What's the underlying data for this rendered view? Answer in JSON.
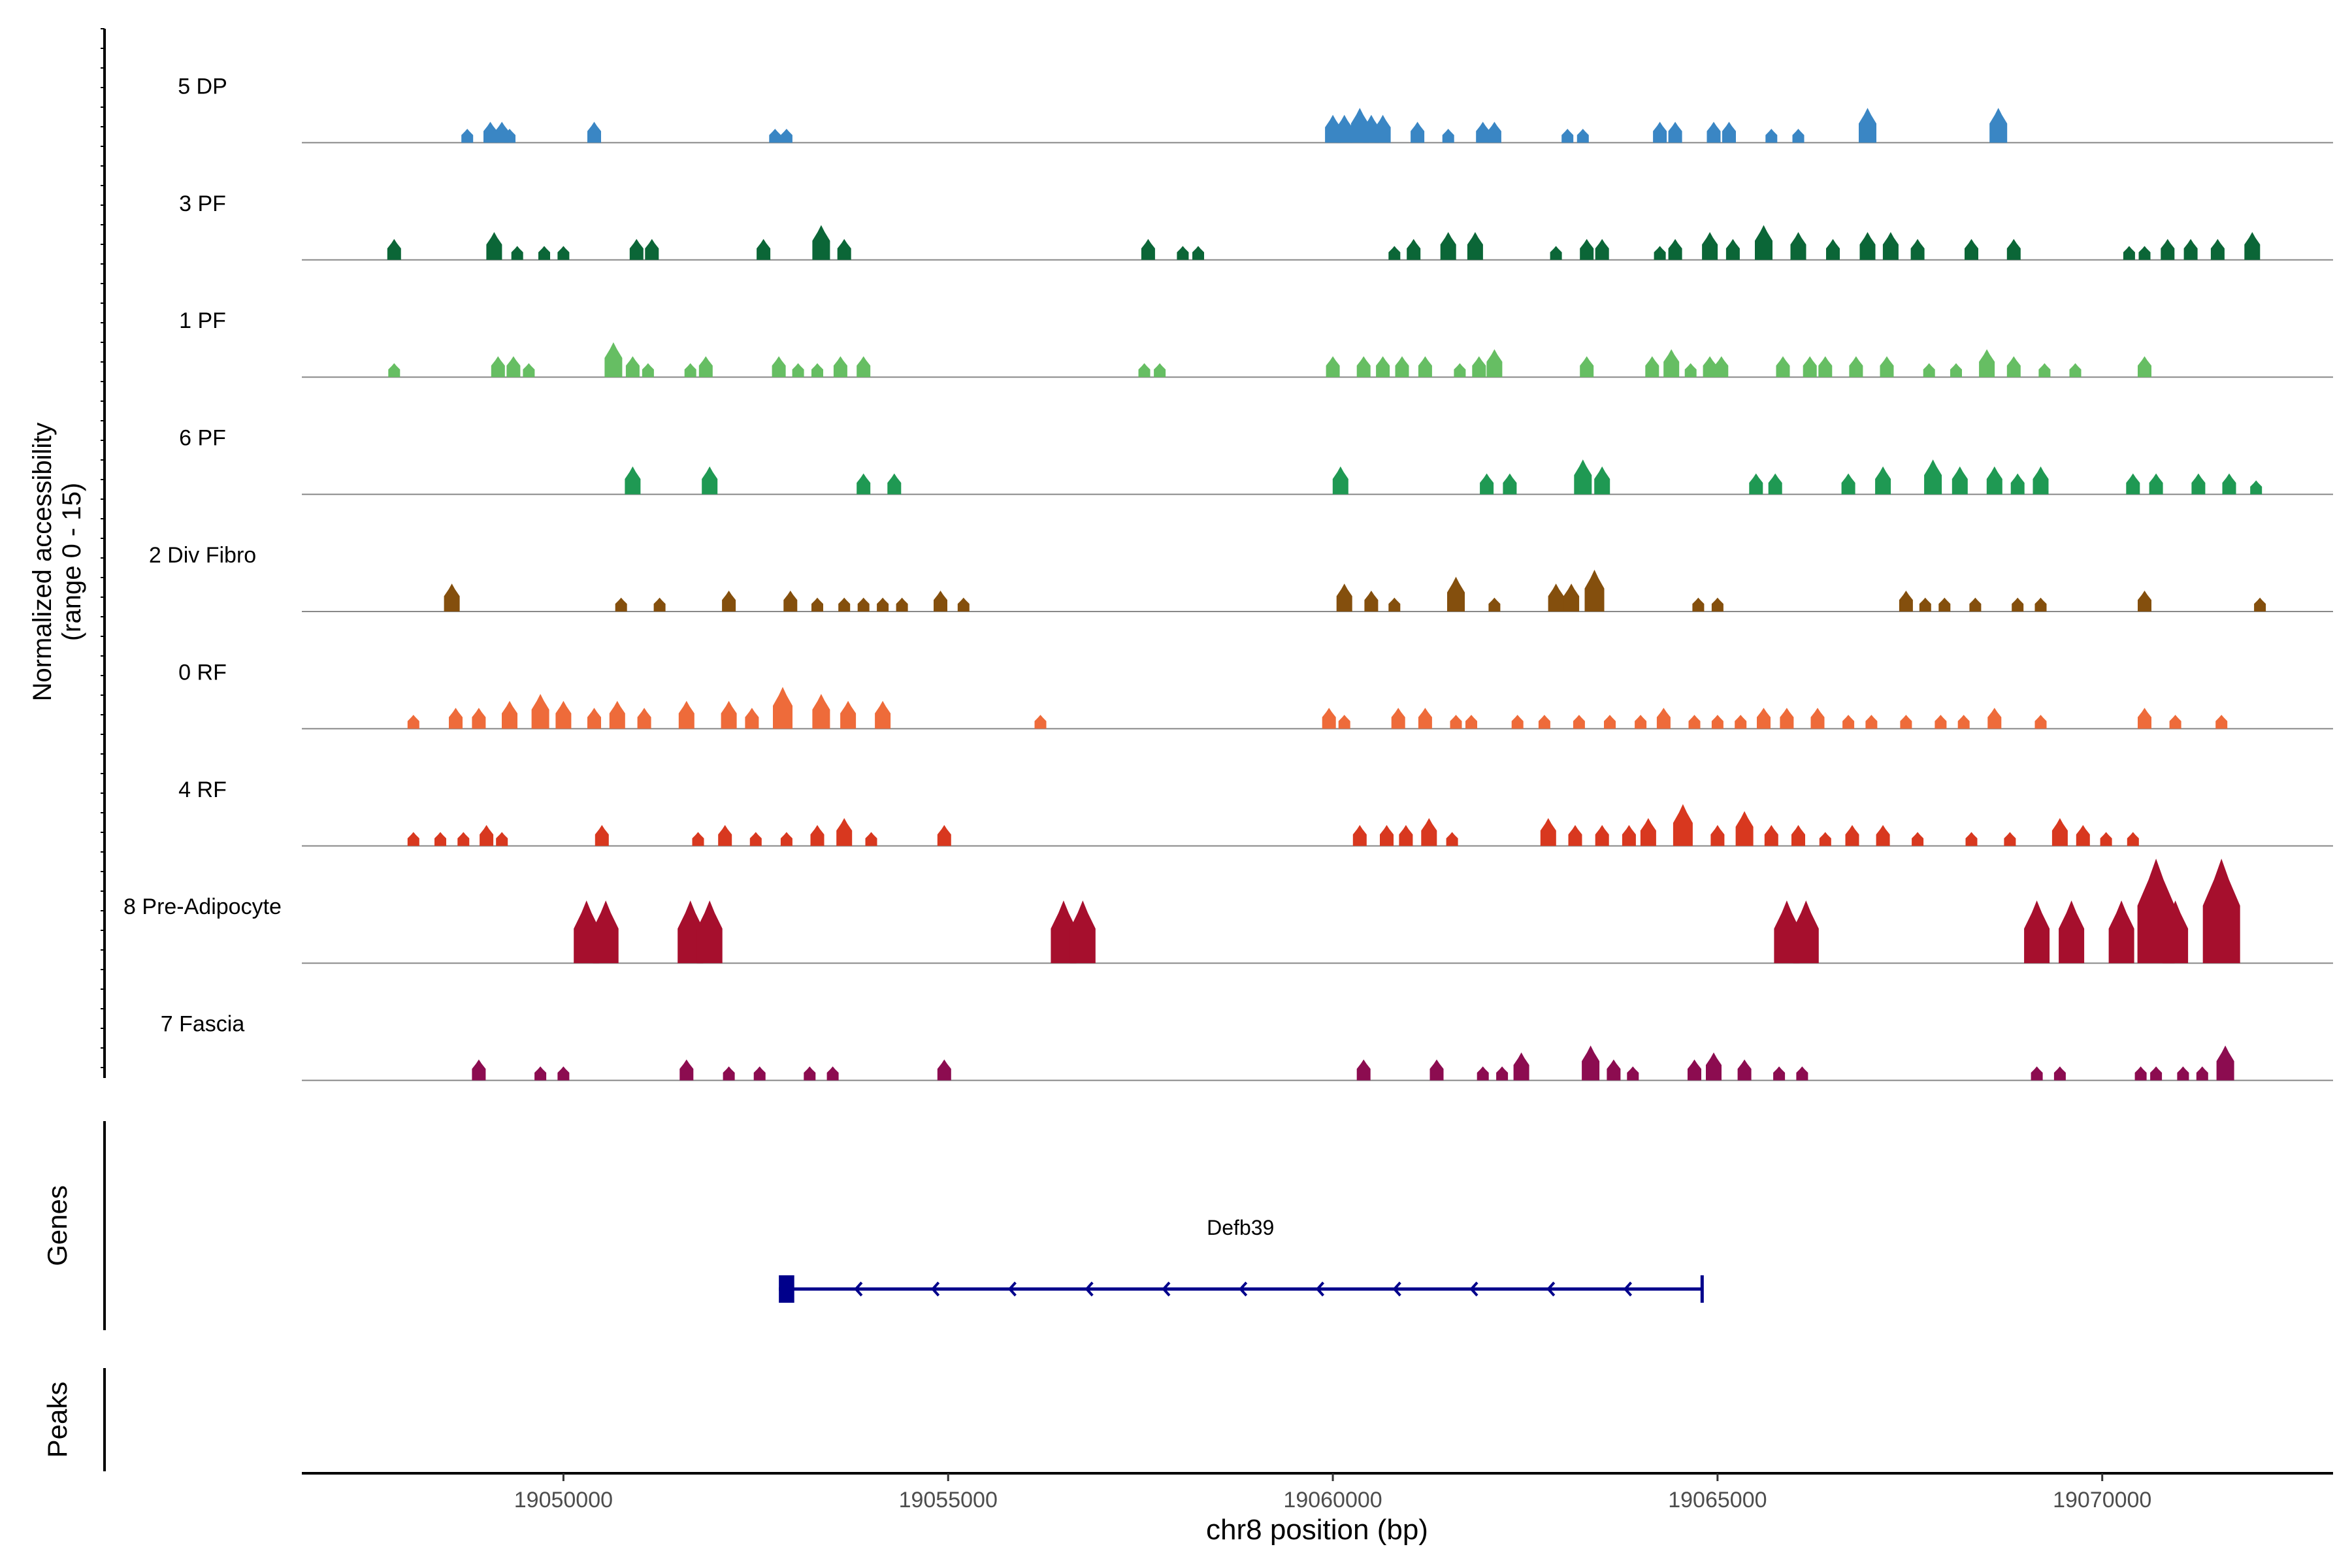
{
  "chart_data": {
    "type": "area",
    "title": "",
    "ylabel_line1": "Normalized accessibility",
    "ylabel_line2": "(range 0 - 15)",
    "ylim": [
      0,
      15
    ],
    "xlabel": "chr8 position (bp)",
    "chromosome": "chr8",
    "xlim": [
      19046600,
      19073000
    ],
    "x_ticks": [
      19050000,
      19055000,
      19060000,
      19065000,
      19070000
    ],
    "x_tick_labels": [
      "19050000",
      "19055000",
      "19060000",
      "19065000",
      "19070000"
    ],
    "tracks": [
      {
        "name": "5 DP",
        "color": "#3a86c4",
        "peaks": [
          [
            19048750,
            2
          ],
          [
            19049050,
            3
          ],
          [
            19049200,
            3
          ],
          [
            19049300,
            2
          ],
          [
            19050400,
            3
          ],
          [
            19052750,
            2
          ],
          [
            19052900,
            2
          ],
          [
            19060000,
            4
          ],
          [
            19060150,
            4
          ],
          [
            19060350,
            5
          ],
          [
            19060500,
            4
          ],
          [
            19060650,
            4
          ],
          [
            19061100,
            3
          ],
          [
            19061500,
            2
          ],
          [
            19061950,
            3
          ],
          [
            19062100,
            3
          ],
          [
            19063050,
            2
          ],
          [
            19063250,
            2
          ],
          [
            19064250,
            3
          ],
          [
            19064450,
            3
          ],
          [
            19064950,
            3
          ],
          [
            19065150,
            3
          ],
          [
            19065700,
            2
          ],
          [
            19066050,
            2
          ],
          [
            19066950,
            5
          ],
          [
            19068650,
            5
          ]
        ]
      },
      {
        "name": "3 PF",
        "color": "#0b6637",
        "peaks": [
          [
            19047800,
            3
          ],
          [
            19049100,
            4
          ],
          [
            19049400,
            2
          ],
          [
            19049750,
            2
          ],
          [
            19050000,
            2
          ],
          [
            19050950,
            3
          ],
          [
            19051150,
            3
          ],
          [
            19052600,
            3
          ],
          [
            19053350,
            5
          ],
          [
            19053650,
            3
          ],
          [
            19057600,
            3
          ],
          [
            19058050,
            2
          ],
          [
            19058250,
            2
          ],
          [
            19060800,
            2
          ],
          [
            19061050,
            3
          ],
          [
            19061500,
            4
          ],
          [
            19061850,
            4
          ],
          [
            19062900,
            2
          ],
          [
            19063300,
            3
          ],
          [
            19063500,
            3
          ],
          [
            19064250,
            2
          ],
          [
            19064450,
            3
          ],
          [
            19064900,
            4
          ],
          [
            19065200,
            3
          ],
          [
            19065600,
            5
          ],
          [
            19066050,
            4
          ],
          [
            19066500,
            3
          ],
          [
            19066950,
            4
          ],
          [
            19067250,
            4
          ],
          [
            19067600,
            3
          ],
          [
            19068300,
            3
          ],
          [
            19068850,
            3
          ],
          [
            19070350,
            2
          ],
          [
            19070550,
            2
          ],
          [
            19070850,
            3
          ],
          [
            19071150,
            3
          ],
          [
            19071500,
            3
          ],
          [
            19071950,
            4
          ]
        ]
      },
      {
        "name": "1 PF",
        "color": "#66be63",
        "peaks": [
          [
            19047800,
            2
          ],
          [
            19049150,
            3
          ],
          [
            19049350,
            3
          ],
          [
            19049550,
            2
          ],
          [
            19050650,
            5
          ],
          [
            19050900,
            3
          ],
          [
            19051100,
            2
          ],
          [
            19051650,
            2
          ],
          [
            19051850,
            3
          ],
          [
            19052800,
            3
          ],
          [
            19053050,
            2
          ],
          [
            19053300,
            2
          ],
          [
            19053600,
            3
          ],
          [
            19053900,
            3
          ],
          [
            19057550,
            2
          ],
          [
            19057750,
            2
          ],
          [
            19060000,
            3
          ],
          [
            19060400,
            3
          ],
          [
            19060650,
            3
          ],
          [
            19060900,
            3
          ],
          [
            19061200,
            3
          ],
          [
            19061650,
            2
          ],
          [
            19061900,
            3
          ],
          [
            19062100,
            4
          ],
          [
            19063300,
            3
          ],
          [
            19064150,
            3
          ],
          [
            19064400,
            4
          ],
          [
            19064650,
            2
          ],
          [
            19064900,
            3
          ],
          [
            19065050,
            3
          ],
          [
            19065850,
            3
          ],
          [
            19066200,
            3
          ],
          [
            19066400,
            3
          ],
          [
            19066800,
            3
          ],
          [
            19067200,
            3
          ],
          [
            19067750,
            2
          ],
          [
            19068100,
            2
          ],
          [
            19068500,
            4
          ],
          [
            19068850,
            3
          ],
          [
            19069250,
            2
          ],
          [
            19069650,
            2
          ],
          [
            19070550,
            3
          ]
        ]
      },
      {
        "name": "6 PF",
        "color": "#1f9953",
        "peaks": [
          [
            19050900,
            4
          ],
          [
            19051900,
            4
          ],
          [
            19053900,
            3
          ],
          [
            19054300,
            3
          ],
          [
            19060100,
            4
          ],
          [
            19062000,
            3
          ],
          [
            19062300,
            3
          ],
          [
            19063250,
            5
          ],
          [
            19063500,
            4
          ],
          [
            19065500,
            3
          ],
          [
            19065750,
            3
          ],
          [
            19066700,
            3
          ],
          [
            19067150,
            4
          ],
          [
            19067800,
            5
          ],
          [
            19068150,
            4
          ],
          [
            19068600,
            4
          ],
          [
            19068900,
            3
          ],
          [
            19069200,
            4
          ],
          [
            19070400,
            3
          ],
          [
            19070700,
            3
          ],
          [
            19071250,
            3
          ],
          [
            19071650,
            3
          ],
          [
            19072000,
            2
          ]
        ]
      },
      {
        "name": "2 Div Fibro",
        "color": "#844f0d",
        "peaks": [
          [
            19048550,
            4
          ],
          [
            19050750,
            2
          ],
          [
            19051250,
            2
          ],
          [
            19052150,
            3
          ],
          [
            19052950,
            3
          ],
          [
            19053300,
            2
          ],
          [
            19053650,
            2
          ],
          [
            19053900,
            2
          ],
          [
            19054150,
            2
          ],
          [
            19054400,
            2
          ],
          [
            19054900,
            3
          ],
          [
            19055200,
            2
          ],
          [
            19060150,
            4
          ],
          [
            19060500,
            3
          ],
          [
            19060800,
            2
          ],
          [
            19061600,
            5
          ],
          [
            19062100,
            2
          ],
          [
            19062900,
            4
          ],
          [
            19063100,
            4
          ],
          [
            19063400,
            6
          ],
          [
            19064750,
            2
          ],
          [
            19065000,
            2
          ],
          [
            19067450,
            3
          ],
          [
            19067700,
            2
          ],
          [
            19067950,
            2
          ],
          [
            19068350,
            2
          ],
          [
            19068900,
            2
          ],
          [
            19069200,
            2
          ],
          [
            19070550,
            3
          ],
          [
            19072050,
            2
          ]
        ]
      },
      {
        "name": "0 RF",
        "color": "#ee6b3a",
        "peaks": [
          [
            19048050,
            2
          ],
          [
            19048600,
            3
          ],
          [
            19048900,
            3
          ],
          [
            19049300,
            4
          ],
          [
            19049700,
            5
          ],
          [
            19050000,
            4
          ],
          [
            19050400,
            3
          ],
          [
            19050700,
            4
          ],
          [
            19051050,
            3
          ],
          [
            19051600,
            4
          ],
          [
            19052150,
            4
          ],
          [
            19052450,
            3
          ],
          [
            19052850,
            6
          ],
          [
            19053350,
            5
          ],
          [
            19053700,
            4
          ],
          [
            19054150,
            4
          ],
          [
            19056200,
            2
          ],
          [
            19059950,
            3
          ],
          [
            19060150,
            2
          ],
          [
            19060850,
            3
          ],
          [
            19061200,
            3
          ],
          [
            19061600,
            2
          ],
          [
            19061800,
            2
          ],
          [
            19062400,
            2
          ],
          [
            19062750,
            2
          ],
          [
            19063200,
            2
          ],
          [
            19063600,
            2
          ],
          [
            19064000,
            2
          ],
          [
            19064300,
            3
          ],
          [
            19064700,
            2
          ],
          [
            19065000,
            2
          ],
          [
            19065300,
            2
          ],
          [
            19065600,
            3
          ],
          [
            19065900,
            3
          ],
          [
            19066300,
            3
          ],
          [
            19066700,
            2
          ],
          [
            19067000,
            2
          ],
          [
            19067450,
            2
          ],
          [
            19067900,
            2
          ],
          [
            19068200,
            2
          ],
          [
            19068600,
            3
          ],
          [
            19069200,
            2
          ],
          [
            19070550,
            3
          ],
          [
            19070950,
            2
          ],
          [
            19071550,
            2
          ]
        ]
      },
      {
        "name": "4 RF",
        "color": "#d8381f",
        "peaks": [
          [
            19048050,
            2
          ],
          [
            19048400,
            2
          ],
          [
            19048700,
            2
          ],
          [
            19049000,
            3
          ],
          [
            19049200,
            2
          ],
          [
            19050500,
            3
          ],
          [
            19051750,
            2
          ],
          [
            19052100,
            3
          ],
          [
            19052500,
            2
          ],
          [
            19052900,
            2
          ],
          [
            19053300,
            3
          ],
          [
            19053650,
            4
          ],
          [
            19054000,
            2
          ],
          [
            19054950,
            3
          ],
          [
            19060350,
            3
          ],
          [
            19060700,
            3
          ],
          [
            19060950,
            3
          ],
          [
            19061250,
            4
          ],
          [
            19061550,
            2
          ],
          [
            19062800,
            4
          ],
          [
            19063150,
            3
          ],
          [
            19063500,
            3
          ],
          [
            19063850,
            3
          ],
          [
            19064100,
            4
          ],
          [
            19064550,
            6
          ],
          [
            19065000,
            3
          ],
          [
            19065350,
            5
          ],
          [
            19065700,
            3
          ],
          [
            19066050,
            3
          ],
          [
            19066400,
            2
          ],
          [
            19066750,
            3
          ],
          [
            19067150,
            3
          ],
          [
            19067600,
            2
          ],
          [
            19068300,
            2
          ],
          [
            19068800,
            2
          ],
          [
            19069450,
            4
          ],
          [
            19069750,
            3
          ],
          [
            19070050,
            2
          ],
          [
            19070400,
            2
          ]
        ]
      },
      {
        "name": "8 Pre-Adipocyte",
        "color": "#a60f2d",
        "peaks": [
          [
            19050300,
            9
          ],
          [
            19050550,
            9
          ],
          [
            19051650,
            9
          ],
          [
            19051900,
            9
          ],
          [
            19056500,
            9
          ],
          [
            19056750,
            9
          ],
          [
            19065900,
            9
          ],
          [
            19066150,
            9
          ],
          [
            19069150,
            9
          ],
          [
            19069600,
            9
          ],
          [
            19070250,
            9
          ],
          [
            19070700,
            15
          ],
          [
            19070950,
            9
          ],
          [
            19071550,
            15
          ]
        ]
      },
      {
        "name": "7 Fascia",
        "color": "#8c0c50",
        "peaks": [
          [
            19048900,
            3
          ],
          [
            19049700,
            2
          ],
          [
            19050000,
            2
          ],
          [
            19051600,
            3
          ],
          [
            19052150,
            2
          ],
          [
            19052550,
            2
          ],
          [
            19053200,
            2
          ],
          [
            19053500,
            2
          ],
          [
            19054950,
            3
          ],
          [
            19060400,
            3
          ],
          [
            19061350,
            3
          ],
          [
            19061950,
            2
          ],
          [
            19062200,
            2
          ],
          [
            19062450,
            4
          ],
          [
            19063350,
            5
          ],
          [
            19063650,
            3
          ],
          [
            19063900,
            2
          ],
          [
            19064700,
            3
          ],
          [
            19064950,
            4
          ],
          [
            19065350,
            3
          ],
          [
            19065800,
            2
          ],
          [
            19066100,
            2
          ],
          [
            19069150,
            2
          ],
          [
            19069450,
            2
          ],
          [
            19070500,
            2
          ],
          [
            19070700,
            2
          ],
          [
            19071050,
            2
          ],
          [
            19071300,
            2
          ],
          [
            19071600,
            5
          ]
        ]
      }
    ],
    "genes_panel_label": "Genes",
    "genes": [
      {
        "name": "Defb39",
        "start": 19052800,
        "end": 19064800,
        "strand": "-",
        "exon_start": 19052800,
        "exon_end": 19053000,
        "arrow_positions": [
          19053800,
          19054800,
          19055800,
          19056800,
          19057800,
          19058800,
          19059800,
          19060800,
          19061800,
          19062800,
          19063800
        ]
      }
    ],
    "peaks_panel_label": "Peaks",
    "peaks_panel": []
  }
}
